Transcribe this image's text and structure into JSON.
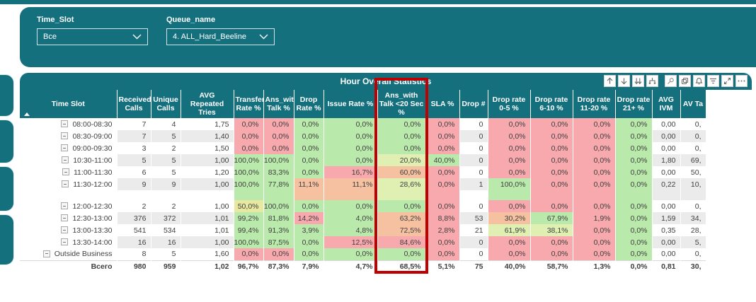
{
  "filters": {
    "time_slot": {
      "label": "Time_Slot",
      "value": "Все"
    },
    "queue_name": {
      "label": "Queue_name",
      "value": "4. ALL_Hard_Beeline"
    }
  },
  "table": {
    "title": "Hour Overall Statistics",
    "toolbar_icons": [
      "drill-up-icon",
      "drill-down-icon",
      "go-to-next-level-icon",
      "expand-all-icon",
      "pin-icon",
      "copy-icon",
      "bell-icon",
      "filter-icon",
      "focus-mode-icon",
      "more-options-icon"
    ],
    "columns": [
      {
        "id": "time-slot",
        "label": "Time Slot"
      },
      {
        "id": "received-calls",
        "label": "Received Calls"
      },
      {
        "id": "unique-calls",
        "label": "Unique Calls"
      },
      {
        "id": "avg-repeated-tries",
        "label": "AVG Repeated Tries"
      },
      {
        "id": "transfer-rate",
        "label": "Transfer Rate %"
      },
      {
        "id": "ans-with-talk",
        "label": "Ans_with Talk %"
      },
      {
        "id": "drop-rate",
        "label": "Drop Rate %"
      },
      {
        "id": "issue-rate",
        "label": "Issue Rate %"
      },
      {
        "id": "ans-with-talk-20sec",
        "label": "Ans_with Talk <20 Sec %"
      },
      {
        "id": "sla",
        "label": "SLA %"
      },
      {
        "id": "drop-count",
        "label": "Drop #"
      },
      {
        "id": "drop-rate-0-5",
        "label": "Drop rate 0-5 %"
      },
      {
        "id": "drop-rate-6-10",
        "label": "Drop rate 6-10 %"
      },
      {
        "id": "drop-rate-11-20",
        "label": "Drop rate 11-20 %"
      },
      {
        "id": "drop-rate-21",
        "label": "Drop rate 21+ %"
      },
      {
        "id": "avg-ivm",
        "label": "AVG IVM"
      },
      {
        "id": "avg-ta",
        "label": "AV Ta"
      }
    ],
    "rows": [
      {
        "slot": "08:00-08:30",
        "shade": false,
        "values": [
          "7",
          "4",
          "1,75",
          "0,0%",
          "0,0%",
          "0,0%",
          "0,0%",
          "0,0%",
          "0,0%",
          "0",
          "0,0%",
          "0,0%",
          "0,0%",
          "0,0%",
          "0,00",
          "0,"
        ],
        "colors": [
          "",
          "",
          "",
          "r",
          "r",
          "g",
          "g",
          "g",
          "r",
          "",
          "r",
          "r",
          "r",
          "g",
          "",
          ""
        ]
      },
      {
        "slot": "08:30-09:00",
        "shade": true,
        "values": [
          "7",
          "5",
          "1,40",
          "0,0%",
          "0,0%",
          "0,0%",
          "0,0%",
          "0,0%",
          "0,0%",
          "0",
          "0,0%",
          "0,0%",
          "0,0%",
          "0,0%",
          "0,00",
          "0,"
        ],
        "colors": [
          "",
          "",
          "",
          "r",
          "r",
          "g",
          "g",
          "g",
          "r",
          "",
          "r",
          "r",
          "r",
          "g",
          "",
          ""
        ]
      },
      {
        "slot": "09:00-09:30",
        "shade": false,
        "values": [
          "3",
          "2",
          "1,50",
          "0,0%",
          "0,0%",
          "0,0%",
          "0,0%",
          "0,0%",
          "0,0%",
          "0",
          "0,0%",
          "0,0%",
          "0,0%",
          "0,0%",
          "0,00",
          "0,"
        ],
        "colors": [
          "",
          "",
          "",
          "r",
          "r",
          "g",
          "g",
          "g",
          "r",
          "",
          "r",
          "r",
          "r",
          "g",
          "",
          ""
        ]
      },
      {
        "slot": "10:30-11:00",
        "shade": true,
        "values": [
          "5",
          "5",
          "1,00",
          "100,0%",
          "100,0%",
          "0,0%",
          "0,0%",
          "20,0%",
          "40,0%",
          "0",
          "0,0%",
          "0,0%",
          "0,0%",
          "0,0%",
          "1,80",
          "69,"
        ],
        "colors": [
          "",
          "",
          "",
          "g",
          "g",
          "g",
          "g",
          "yg",
          "g",
          "",
          "r",
          "r",
          "r",
          "g",
          "",
          ""
        ]
      },
      {
        "slot": "11:00-11:30",
        "shade": false,
        "values": [
          "6",
          "5",
          "1,20",
          "100,0%",
          "83,3%",
          "0,0%",
          "16,7%",
          "60,0%",
          "0,0%",
          "0",
          "0,0%",
          "0,0%",
          "0,0%",
          "0,0%",
          "0,00",
          "50,"
        ],
        "colors": [
          "",
          "",
          "",
          "g",
          "g",
          "g",
          "r",
          "o",
          "r",
          "",
          "r",
          "r",
          "r",
          "g",
          "",
          ""
        ]
      },
      {
        "slot": "11:30-12:00",
        "shade": true,
        "values": [
          "9",
          "9",
          "1,00",
          "100,0%",
          "77,8%",
          "11,1%",
          "11,1%",
          "28,6%",
          "0,0%",
          "1",
          "100,0%",
          "0,0%",
          "0,0%",
          "0,0%",
          "0,22",
          "10,"
        ],
        "colors": [
          "",
          "",
          "",
          "g",
          "g",
          "o",
          "o",
          "yg",
          "r",
          "",
          "g",
          "r",
          "r",
          "g",
          "",
          ""
        ]
      },
      {
        "spacer": true,
        "shade": false,
        "colors": [
          "",
          "",
          "",
          "g",
          "g",
          "o",
          "o",
          "yg",
          "r",
          "",
          "g",
          "r",
          "r",
          "g",
          "st",
          "st"
        ]
      },
      {
        "slot": "12:00-12:30",
        "shade": false,
        "values": [
          "2",
          "2",
          "1,00",
          "50,0%",
          "100,0%",
          "0,0%",
          "0,0%",
          "0,0%",
          "0,0%",
          "0",
          "0,0%",
          "0,0%",
          "0,0%",
          "0,0%",
          "0,00",
          "0,"
        ],
        "colors": [
          "",
          "",
          "",
          "y",
          "g",
          "g",
          "g",
          "g",
          "r",
          "",
          "r",
          "r",
          "r",
          "g",
          "",
          ""
        ]
      },
      {
        "slot": "12:30-13:00",
        "shade": true,
        "values": [
          "376",
          "372",
          "1,01",
          "99,2%",
          "81,8%",
          "14,2%",
          "4,0%",
          "63,2%",
          "8,8%",
          "53",
          "30,2%",
          "67,9%",
          "1,9%",
          "0,0%",
          "1,59",
          "34,"
        ],
        "colors": [
          "",
          "",
          "",
          "g",
          "g",
          "r",
          "g",
          "o",
          "r",
          "",
          "o",
          "g",
          "r",
          "g",
          "",
          ""
        ]
      },
      {
        "slot": "13:00-13:30",
        "shade": false,
        "values": [
          "541",
          "534",
          "1,01",
          "99,4%",
          "91,3%",
          "3,9%",
          "4,8%",
          "72,5%",
          "2,8%",
          "21",
          "61,9%",
          "38,1%",
          "0,0%",
          "0,0%",
          "0,35",
          "28,"
        ],
        "colors": [
          "",
          "",
          "",
          "g",
          "g",
          "g",
          "g",
          "o",
          "r",
          "",
          "yg",
          "yg",
          "r",
          "g",
          "",
          ""
        ]
      },
      {
        "slot": "13:30-14:00",
        "shade": true,
        "values": [
          "16",
          "16",
          "1,00",
          "100,0%",
          "87,5%",
          "0,0%",
          "12,5%",
          "84,6%",
          "0,0%",
          "0",
          "0,0%",
          "0,0%",
          "0,0%",
          "0,0%",
          "0,00",
          "5,"
        ],
        "colors": [
          "",
          "",
          "",
          "g",
          "g",
          "g",
          "r",
          "r",
          "r",
          "",
          "r",
          "r",
          "r",
          "g",
          "",
          ""
        ]
      },
      {
        "slot": "Outside Business",
        "shade": false,
        "values": [
          "8",
          "5",
          "1,60",
          "0,0%",
          "0,0%",
          "0,0%",
          "0,0%",
          "0,0%",
          "0,0%",
          "0",
          "0,0%",
          "0,0%",
          "0,0%",
          "0,0%",
          "0,00",
          "0,"
        ],
        "colors": [
          "",
          "",
          "",
          "r",
          "r",
          "g",
          "g",
          "g",
          "r",
          "",
          "r",
          "r",
          "r",
          "g",
          "",
          ""
        ]
      },
      {
        "slot": "Всего",
        "total": true,
        "shade": false,
        "values": [
          "980",
          "959",
          "1,02",
          "96,7%",
          "87,3%",
          "7,9%",
          "4,7%",
          "68,5%",
          "5,1%",
          "75",
          "40,0%",
          "58,7%",
          "1,3%",
          "0,0%",
          "0,81",
          "30,"
        ],
        "colors": [
          "",
          "",
          "",
          "",
          "",
          "",
          "",
          "",
          "",
          "",
          "",
          "",
          "",
          "",
          "",
          ""
        ]
      }
    ]
  },
  "colors": {
    "teal": "#15707E",
    "g": "#B9EAAB",
    "r": "#F8A9AE",
    "o": "#F5C1A0",
    "y": "#E7E9A1",
    "yg": "#DFF0B2",
    "st": "#EBEBEB",
    "shade": "#EBEBEB",
    "highlight_border": "#C00000",
    "slot_separator": "#A9CBE8"
  }
}
